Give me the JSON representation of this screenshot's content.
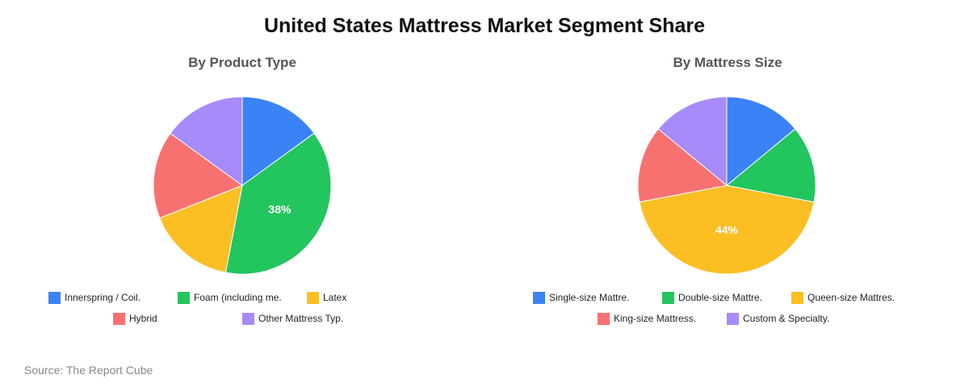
{
  "title": "United States Mattress Market Segment Share",
  "source": "Source: The Report Cube",
  "chart_data": [
    {
      "type": "pie",
      "title": "By Product Type",
      "categories": [
        "Innerspring / Coil.",
        "Foam (including me.",
        "Latex",
        "Hybrid",
        "Other Mattress Typ."
      ],
      "values": [
        15,
        38,
        16,
        16,
        15
      ],
      "colors": [
        "#3b82f6",
        "#22c55e",
        "#fbbf24",
        "#f87171",
        "#a78bfa"
      ],
      "data_labels": [
        "",
        "38%",
        "",
        "",
        ""
      ],
      "legend_position": "bottom"
    },
    {
      "type": "pie",
      "title": "By Mattress Size",
      "categories": [
        "Single-size Mattre.",
        "Double-size Mattre.",
        "Queen-size Mattres.",
        "King-size Mattress.",
        "Custom & Specialty."
      ],
      "values": [
        14,
        14,
        44,
        14,
        14
      ],
      "colors": [
        "#3b82f6",
        "#22c55e",
        "#fbbf24",
        "#f87171",
        "#a78bfa"
      ],
      "data_labels": [
        "",
        "",
        "44%",
        "",
        ""
      ],
      "legend_position": "bottom"
    }
  ]
}
